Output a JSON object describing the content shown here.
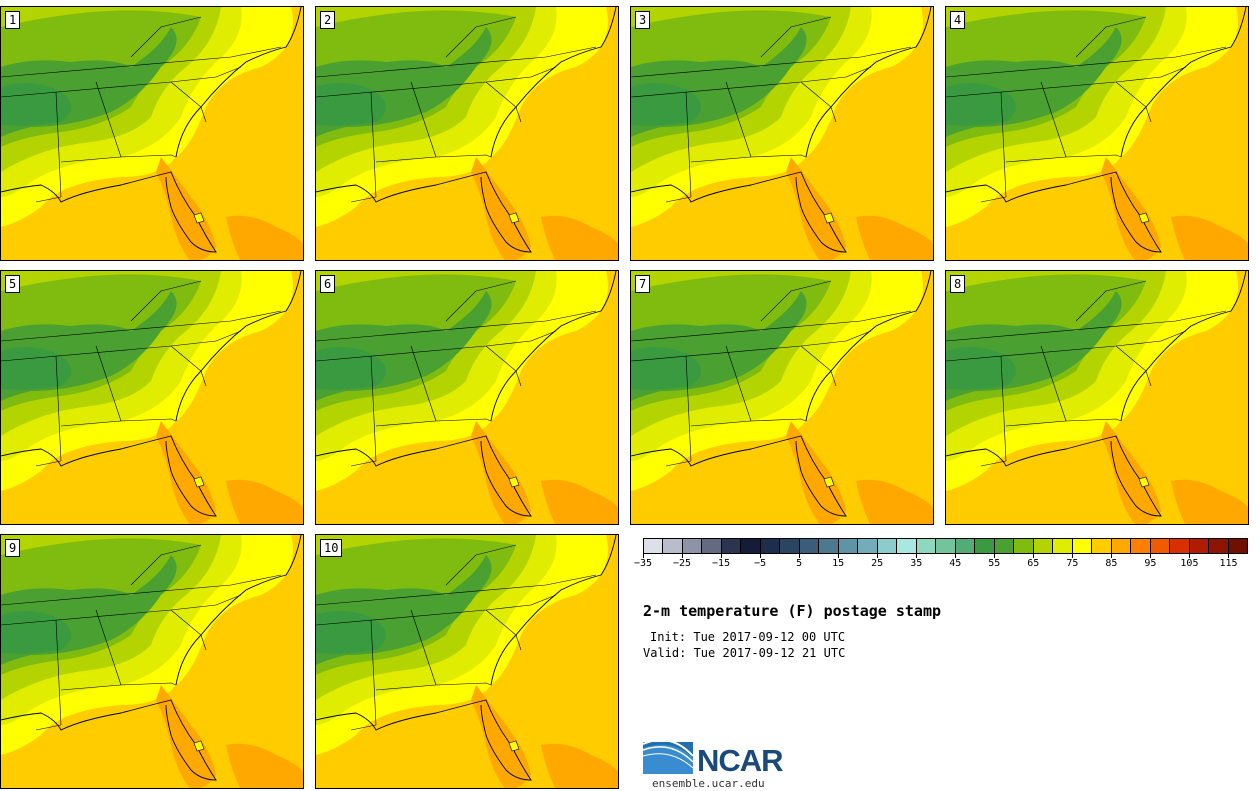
{
  "panels": [
    {
      "label": "1"
    },
    {
      "label": "2"
    },
    {
      "label": "3"
    },
    {
      "label": "4"
    },
    {
      "label": "5"
    },
    {
      "label": "6"
    },
    {
      "label": "7"
    },
    {
      "label": "8"
    },
    {
      "label": "9"
    },
    {
      "label": "10"
    }
  ],
  "colorbar": {
    "colors": [
      "#dce0e8",
      "#b8bccb",
      "#8e93a7",
      "#646a80",
      "#2c3550",
      "#141d38",
      "#1d2d4c",
      "#2a4562",
      "#3a5d7a",
      "#4c7890",
      "#5f93a6",
      "#74adba",
      "#8ccccc",
      "#a8e8e0",
      "#8ed8c0",
      "#72c49c",
      "#52ac74",
      "#3a9a40",
      "#4aa030",
      "#80bc10",
      "#b4d400",
      "#e0ec00",
      "#ffff00",
      "#ffcc00",
      "#ffa800",
      "#ff8000",
      "#f05a00",
      "#d83000",
      "#b01c00",
      "#8c1400",
      "#701000"
    ],
    "tick_labels": [
      "−35",
      "−25",
      "−15",
      "−5",
      "5",
      "15",
      "25",
      "35",
      "45",
      "55",
      "65",
      "75",
      "85",
      "95",
      "105",
      "115"
    ]
  },
  "title": "2-m temperature (F) postage stamp",
  "init": "Init: Tue 2017-09-12 00 UTC",
  "valid": "Valid: Tue 2017-09-12 21 UTC",
  "logo": {
    "name": "NCAR",
    "url": "ensemble.ucar.edu"
  }
}
